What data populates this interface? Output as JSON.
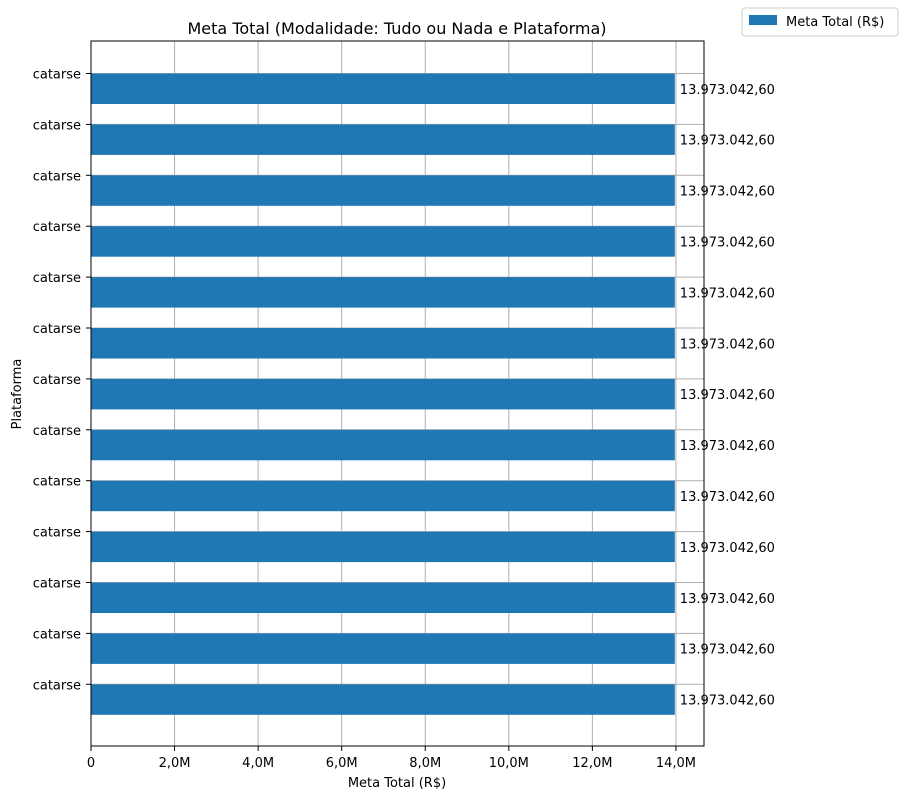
{
  "chart_data": {
    "type": "bar",
    "orientation": "horizontal",
    "title": "Meta Total (Modalidade: Tudo ou Nada e Plataforma)",
    "xlabel": "Meta Total (R$)",
    "ylabel": "Plataforma",
    "categories": [
      "catarse",
      "catarse",
      "catarse",
      "catarse",
      "catarse",
      "catarse",
      "catarse",
      "catarse",
      "catarse",
      "catarse",
      "catarse",
      "catarse",
      "catarse"
    ],
    "series": [
      {
        "name": "Meta Total (R$)",
        "color": "#1f77b4",
        "values": [
          13973042.6,
          13973042.6,
          13973042.6,
          13973042.6,
          13973042.6,
          13973042.6,
          13973042.6,
          13973042.6,
          13973042.6,
          13973042.6,
          13973042.6,
          13973042.6,
          13973042.6
        ],
        "labels": [
          "13.973.042,60",
          "13.973.042,60",
          "13.973.042,60",
          "13.973.042,60",
          "13.973.042,60",
          "13.973.042,60",
          "13.973.042,60",
          "13.973.042,60",
          "13.973.042,60",
          "13.973.042,60",
          "13.973.042,60",
          "13.973.042,60",
          "13.973.042,60"
        ]
      }
    ],
    "xlim": [
      0,
      14671694.7
    ],
    "x_ticks": [
      0,
      2000000,
      4000000,
      6000000,
      8000000,
      10000000,
      12000000,
      14000000
    ],
    "x_tick_labels": [
      "0",
      "2,0M",
      "4,0M",
      "6,0M",
      "8,0M",
      "10,0M",
      "12,0M",
      "14,0M"
    ],
    "grid": true,
    "legend_position": "outside-top-right"
  }
}
